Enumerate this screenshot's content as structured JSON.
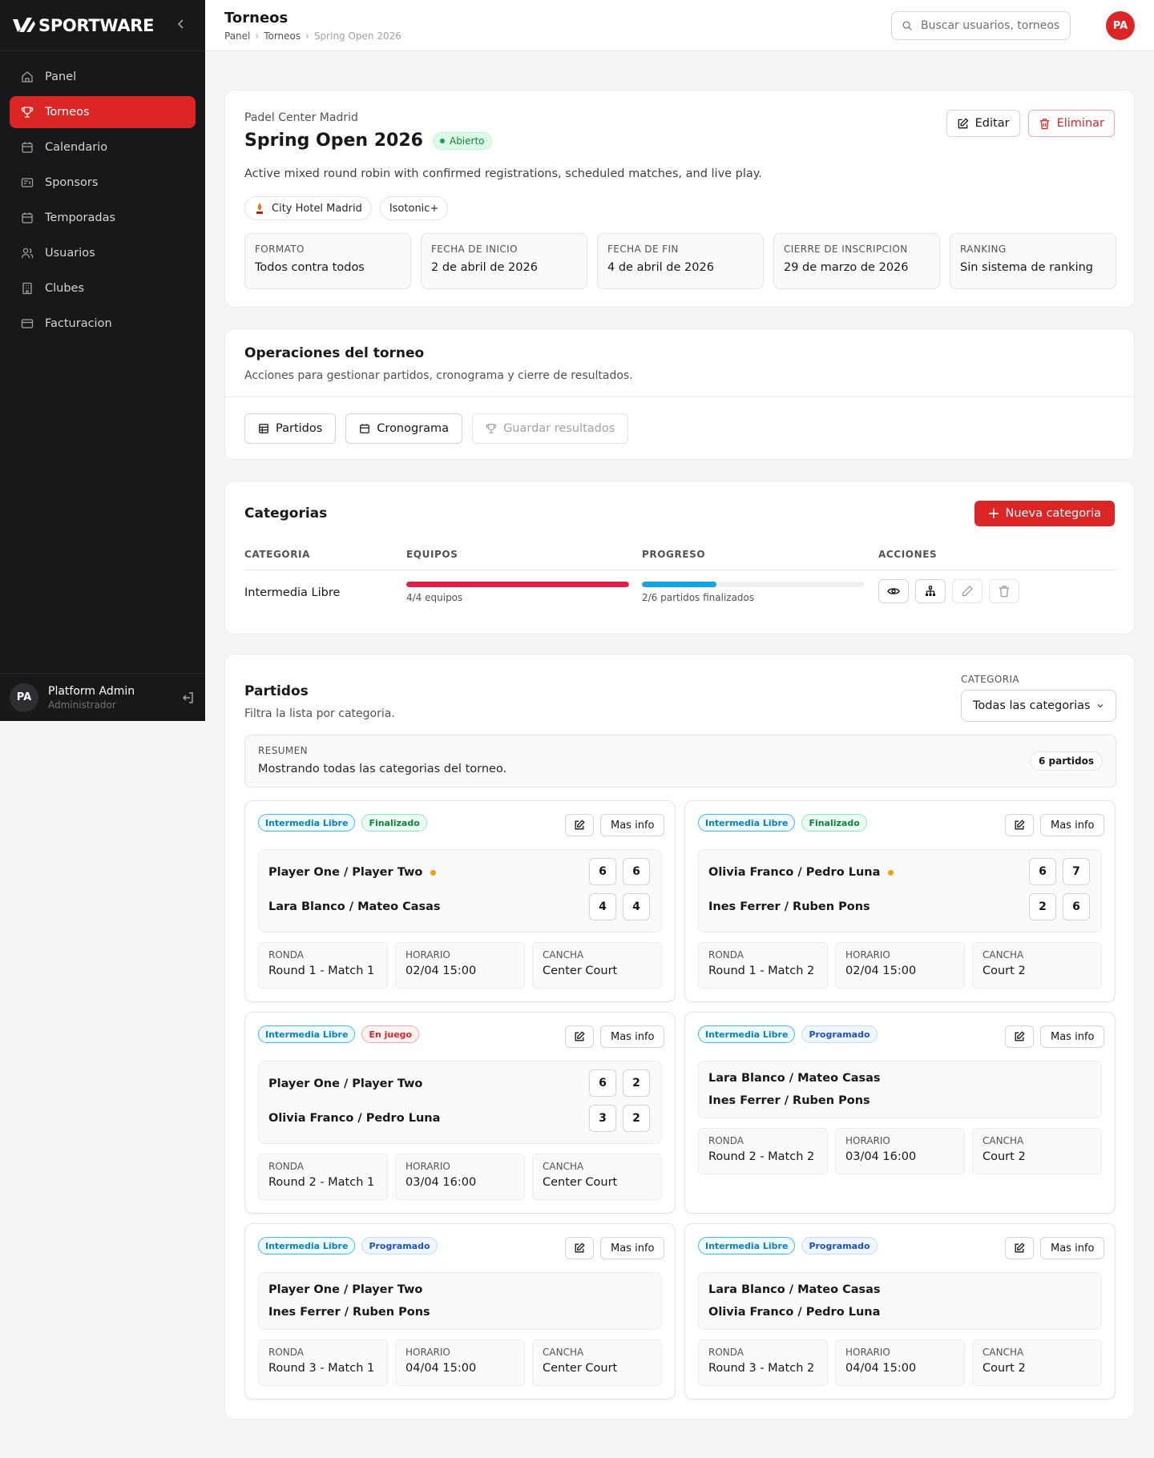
{
  "brand": {
    "name": "SPORTWARE"
  },
  "sidebar": {
    "items": [
      {
        "label": "Panel",
        "icon": "home-icon"
      },
      {
        "label": "Torneos",
        "icon": "trophy-icon",
        "active": true
      },
      {
        "label": "Calendario",
        "icon": "calendar-icon"
      },
      {
        "label": "Sponsors",
        "icon": "sponsor-icon"
      },
      {
        "label": "Temporadas",
        "icon": "calendar-icon"
      },
      {
        "label": "Usuarios",
        "icon": "users-icon"
      },
      {
        "label": "Clubes",
        "icon": "building-icon"
      },
      {
        "label": "Facturacion",
        "icon": "billing-icon"
      }
    ],
    "user": {
      "initials": "PA",
      "name": "Platform Admin",
      "role": "Administrador"
    }
  },
  "header": {
    "title": "Torneos",
    "breadcrumb": [
      "Panel",
      "Torneos",
      "Spring Open 2026"
    ],
    "search_placeholder": "Buscar usuarios, torneos, cl",
    "avatar": "PA"
  },
  "tournament": {
    "club": "Padel Center Madrid",
    "name": "Spring Open 2026",
    "status": "Abierto",
    "description": "Active mixed round robin with confirmed registrations, scheduled matches, and live play.",
    "sponsors": [
      "City Hotel Madrid",
      "Isotonic+"
    ],
    "edit_label": "Editar",
    "delete_label": "Eliminar",
    "stats": [
      {
        "label": "FORMATO",
        "value": "Todos contra todos"
      },
      {
        "label": "FECHA DE INICIO",
        "value": "2 de abril de 2026"
      },
      {
        "label": "FECHA DE FIN",
        "value": "4 de abril de 2026"
      },
      {
        "label": "CIERRE DE INSCRIPCION",
        "value": "29 de marzo de 2026"
      },
      {
        "label": "RANKING",
        "value": "Sin sistema de ranking"
      }
    ]
  },
  "operations": {
    "title": "Operaciones del torneo",
    "subtitle": "Acciones para gestionar partidos, cronograma y cierre de resultados.",
    "buttons": [
      "Partidos",
      "Cronograma",
      "Guardar resultados"
    ]
  },
  "categories": {
    "title": "Categorias",
    "new_label": "Nueva categoria",
    "headers": [
      "CATEGORIA",
      "EQUIPOS",
      "PROGRESO",
      "ACCIONES"
    ],
    "rows": [
      {
        "name": "Intermedia Libre",
        "teams_text": "4/4 equipos",
        "teams_fraction": 1.0,
        "progress_text": "2/6 partidos finalizados",
        "progress_fraction": 0.333
      }
    ]
  },
  "matches": {
    "title": "Partidos",
    "subtitle": "Filtra la lista por categoria.",
    "filter_label": "CATEGORIA",
    "filter_value": "Todas las categorias",
    "summary_label": "RESUMEN",
    "summary_text": "Mostrando todas las categorias del torneo.",
    "count_label": "6 partidos",
    "edit_hint": "edit",
    "more_label": "Mas info",
    "meta_labels": {
      "round": "RONDA",
      "time": "HORARIO",
      "court": "CANCHA"
    },
    "items": [
      {
        "category": "Intermedia Libre",
        "status": "Finalizado",
        "team1": "Player One / Player Two",
        "team2": "Lara Blanco / Mateo Casas",
        "s1": [
          "6",
          "6"
        ],
        "s2": [
          "4",
          "4"
        ],
        "round": "Round 1 - Match 1",
        "time": "02/04 15:00",
        "court": "Center Court"
      },
      {
        "category": "Intermedia Libre",
        "status": "Finalizado",
        "team1": "Olivia Franco / Pedro Luna",
        "team2": "Ines Ferrer / Ruben Pons",
        "s1": [
          "6",
          "7"
        ],
        "s2": [
          "2",
          "6"
        ],
        "round": "Round 1 - Match 2",
        "time": "02/04 15:00",
        "court": "Court 2"
      },
      {
        "category": "Intermedia Libre",
        "status": "En juego",
        "team1": "Player One / Player Two",
        "team2": "Olivia Franco / Pedro Luna",
        "s1": [
          "6",
          "2"
        ],
        "s2": [
          "3",
          "2"
        ],
        "round": "Round 2 - Match 1",
        "time": "03/04 16:00",
        "court": "Center Court"
      },
      {
        "category": "Intermedia Libre",
        "status": "Programado",
        "team1": "Lara Blanco / Mateo Casas",
        "team2": "Ines Ferrer / Ruben Pons",
        "round": "Round 2 - Match 2",
        "time": "03/04 16:00",
        "court": "Court 2"
      },
      {
        "category": "Intermedia Libre",
        "status": "Programado",
        "team1": "Player One / Player Two",
        "team2": "Ines Ferrer / Ruben Pons",
        "round": "Round 3 - Match 1",
        "time": "04/04 15:00",
        "court": "Center Court"
      },
      {
        "category": "Intermedia Libre",
        "status": "Programado",
        "team1": "Lara Blanco / Mateo Casas",
        "team2": "Olivia Franco / Pedro Luna",
        "round": "Round 3 - Match 2",
        "time": "04/04 15:00",
        "court": "Court 2"
      }
    ]
  },
  "colors": {
    "accent": "#dc2626",
    "teams_bar": "#e11d48",
    "progress_bar": "#0ea5e9"
  }
}
